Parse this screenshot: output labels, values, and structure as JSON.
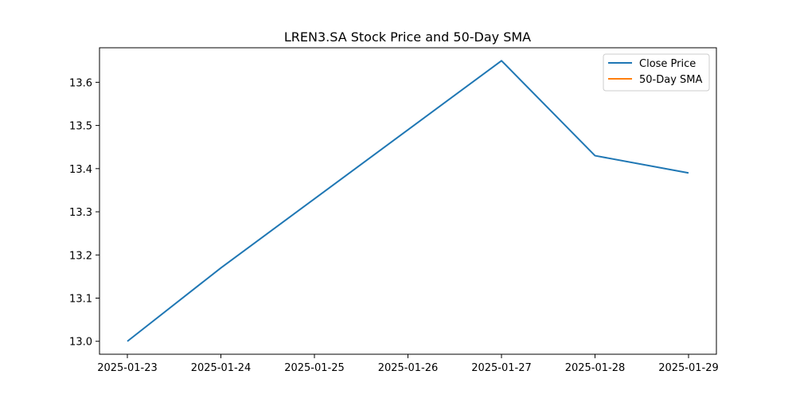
{
  "chart_data": {
    "type": "line",
    "title": "LREN3.SA Stock Price and 50-Day SMA",
    "xlabel": "",
    "ylabel": "",
    "x": [
      "2025-01-23",
      "2025-01-24",
      "2025-01-25",
      "2025-01-26",
      "2025-01-27",
      "2025-01-28",
      "2025-01-29"
    ],
    "xlim": [
      "2025-01-23",
      "2025-01-29"
    ],
    "yticks": [
      "13.0",
      "13.1",
      "13.2",
      "13.3",
      "13.4",
      "13.5",
      "13.6"
    ],
    "ylim": [
      12.97,
      13.68
    ],
    "grid": false,
    "legend_position": "top-right",
    "series": [
      {
        "name": "Close Price",
        "color": "#1f77b4",
        "values": [
          13.0,
          13.17,
          13.33,
          13.49,
          13.65,
          13.43,
          13.39
        ]
      },
      {
        "name": "50-Day SMA",
        "color": "#ff7f0e",
        "values": [
          null,
          null,
          null,
          null,
          null,
          null,
          null
        ]
      }
    ]
  }
}
